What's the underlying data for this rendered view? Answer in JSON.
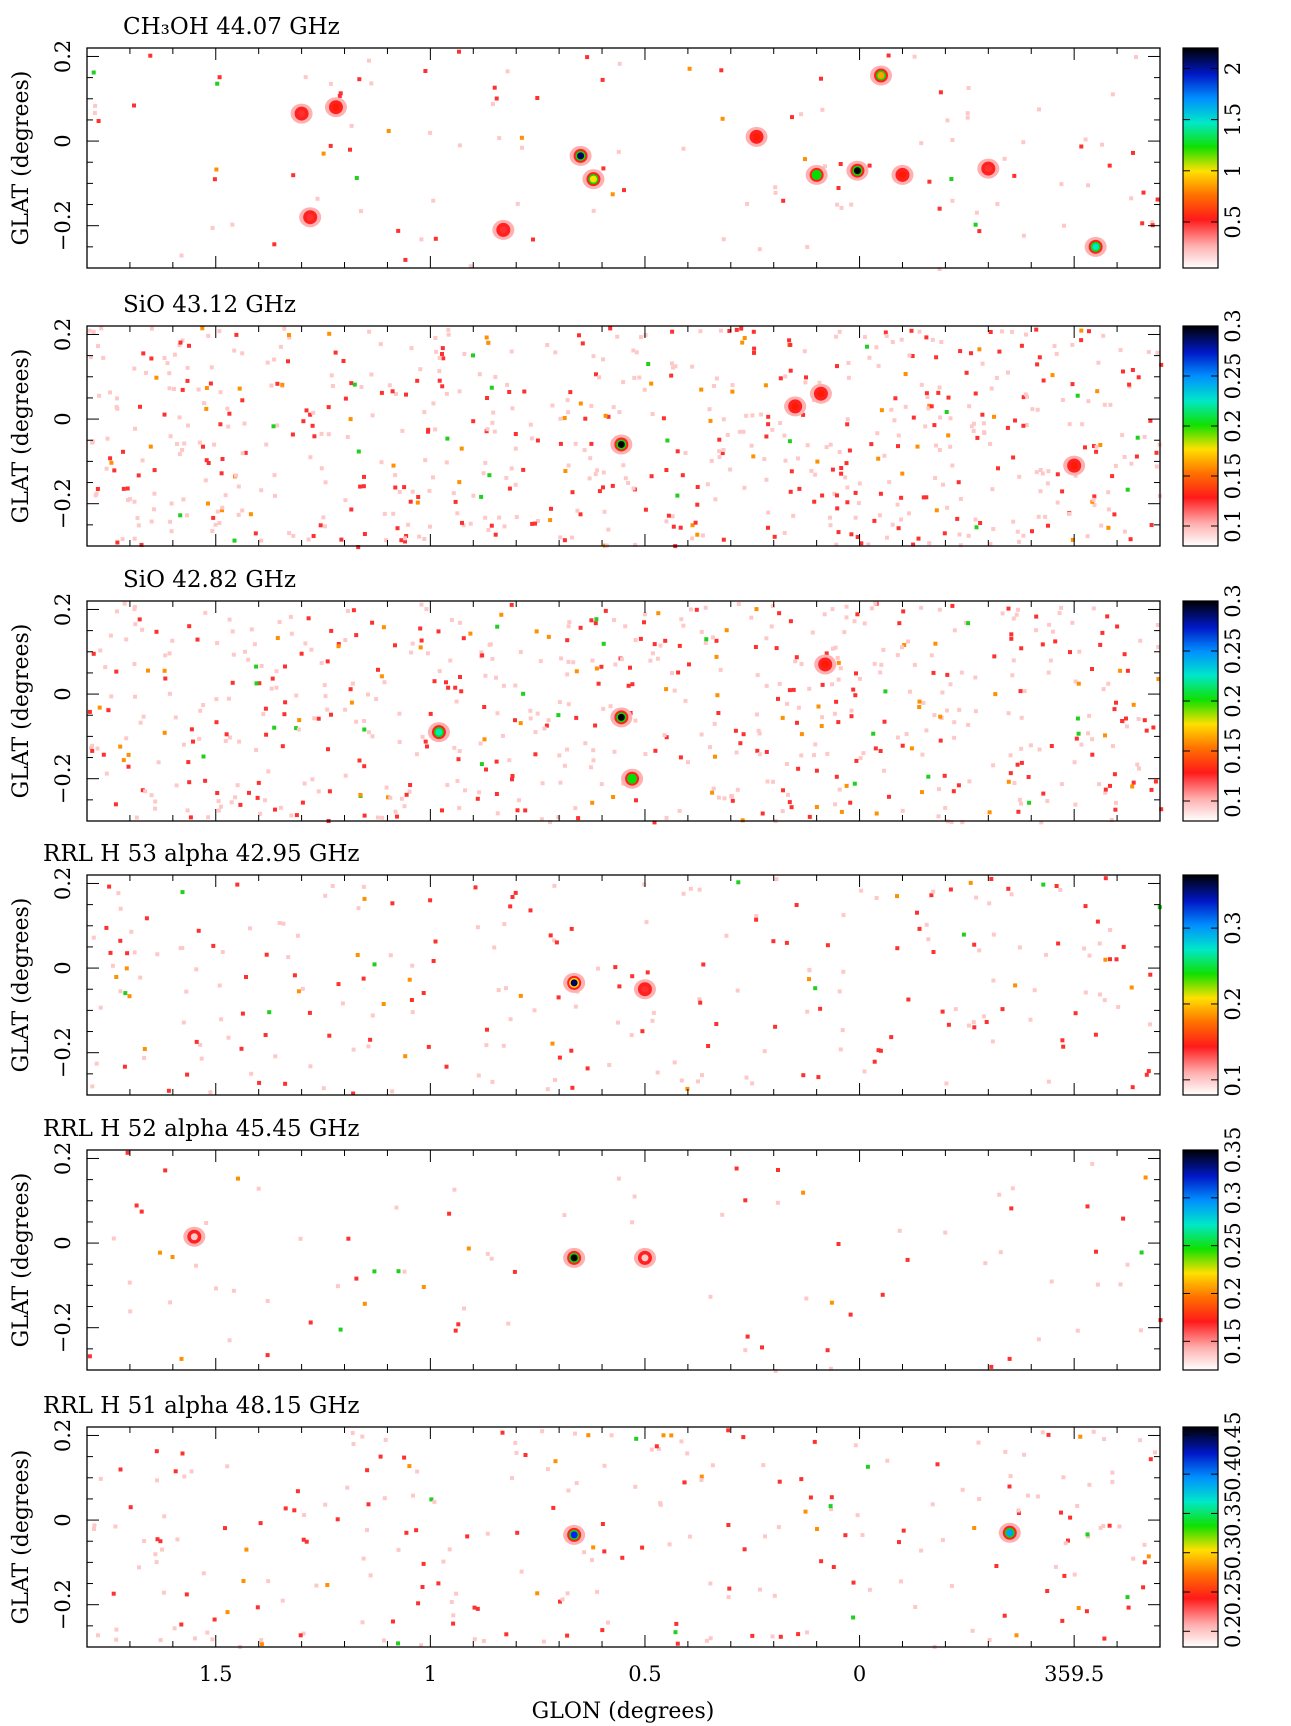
{
  "figure": {
    "xlabel": "GLON (degrees)",
    "ylabel": "GLAT (degrees)",
    "x_ticks": [
      "1.5",
      "1",
      "0.5",
      "0",
      "359.5"
    ],
    "y_ticks": [
      "0.2",
      "0",
      "−0.2"
    ]
  },
  "panels": [
    {
      "title": "CH₃OH 44.07 GHz",
      "cb_ticks": [
        "0.5",
        "1",
        "1.5",
        "2"
      ]
    },
    {
      "title": "SiO 43.12 GHz",
      "cb_ticks": [
        "0.1",
        "0.15",
        "0.2",
        "0.25",
        "0.3"
      ]
    },
    {
      "title": "SiO 42.82 GHz",
      "cb_ticks": [
        "0.1",
        "0.15",
        "0.2",
        "0.25",
        "0.3"
      ]
    },
    {
      "title": "RRL H 53 alpha 42.95 GHz",
      "cb_ticks": [
        "0.1",
        "0.2",
        "0.3"
      ]
    },
    {
      "title": "RRL H 52 alpha 45.45 GHz",
      "cb_ticks": [
        "0.15",
        "0.2",
        "0.25",
        "0.3",
        "0.35"
      ]
    },
    {
      "title": "RRL H 51 alpha 48.15 GHz",
      "cb_ticks": [
        "0.2",
        "0.25",
        "0.3",
        "0.35",
        "0.4",
        "0.45"
      ]
    }
  ],
  "chart_data": [
    {
      "type": "heatmap",
      "title": "CH₃OH 44.07 GHz",
      "xlabel": "",
      "ylabel": "GLAT (degrees)",
      "xlim": [
        1.8,
        -0.7
      ],
      "ylim": [
        -0.3,
        0.22
      ],
      "colorbar_range": [
        0.05,
        2.2
      ],
      "sources": [
        {
          "x": 0.65,
          "y": -0.035,
          "v": 2.0
        },
        {
          "x": 0.005,
          "y": -0.07,
          "v": 2.2
        },
        {
          "x": -0.55,
          "y": -0.25,
          "v": 1.5
        },
        {
          "x": 0.1,
          "y": -0.08,
          "v": 1.3
        },
        {
          "x": 0.62,
          "y": -0.09,
          "v": 1.0
        },
        {
          "x": -0.05,
          "y": 0.155,
          "v": 0.9
        },
        {
          "x": 1.22,
          "y": 0.08,
          "v": 0.6
        },
        {
          "x": 1.3,
          "y": 0.065,
          "v": 0.5
        },
        {
          "x": 0.24,
          "y": 0.01,
          "v": 0.6
        },
        {
          "x": -0.1,
          "y": -0.08,
          "v": 0.6
        },
        {
          "x": 1.28,
          "y": -0.18,
          "v": 0.5
        },
        {
          "x": -0.3,
          "y": -0.065,
          "v": 0.45
        },
        {
          "x": 0.83,
          "y": -0.21,
          "v": 0.45
        }
      ]
    },
    {
      "type": "heatmap",
      "title": "SiO 43.12 GHz",
      "xlabel": "",
      "ylabel": "GLAT (degrees)",
      "xlim": [
        1.8,
        -0.7
      ],
      "ylim": [
        -0.3,
        0.22
      ],
      "colorbar_range": [
        0.08,
        0.3
      ],
      "sources": [
        {
          "x": 0.555,
          "y": -0.06,
          "v": 0.3
        },
        {
          "x": 0.09,
          "y": 0.06,
          "v": 0.14
        },
        {
          "x": 0.15,
          "y": 0.03,
          "v": 0.14
        },
        {
          "x": -0.5,
          "y": -0.11,
          "v": 0.13
        }
      ]
    },
    {
      "type": "heatmap",
      "title": "SiO 42.82 GHz",
      "xlabel": "",
      "ylabel": "GLAT (degrees)",
      "xlim": [
        1.8,
        -0.7
      ],
      "ylim": [
        -0.3,
        0.22
      ],
      "colorbar_range": [
        0.08,
        0.3
      ],
      "sources": [
        {
          "x": 0.555,
          "y": -0.055,
          "v": 0.3
        },
        {
          "x": 0.98,
          "y": -0.09,
          "v": 0.22
        },
        {
          "x": 0.53,
          "y": -0.2,
          "v": 0.2
        },
        {
          "x": 0.08,
          "y": 0.07,
          "v": 0.13
        }
      ]
    },
    {
      "type": "heatmap",
      "title": "RRL H 53 alpha 42.95 GHz",
      "xlabel": "",
      "ylabel": "GLAT (degrees)",
      "xlim": [
        1.8,
        -0.7
      ],
      "ylim": [
        -0.3,
        0.22
      ],
      "colorbar_range": [
        0.08,
        0.37
      ],
      "sources": [
        {
          "x": 0.665,
          "y": -0.035,
          "v": 0.35
        },
        {
          "x": 0.5,
          "y": -0.05,
          "v": 0.12
        }
      ]
    },
    {
      "type": "heatmap",
      "title": "RRL H 52 alpha 45.45 GHz",
      "xlabel": "",
      "ylabel": "GLAT (degrees)",
      "xlim": [
        1.8,
        -0.7
      ],
      "ylim": [
        -0.3,
        0.22
      ],
      "colorbar_range": [
        0.12,
        0.35
      ],
      "sources": [
        {
          "x": 0.665,
          "y": -0.035,
          "v": 0.35
        },
        {
          "x": 1.55,
          "y": 0.015,
          "v": 0.15
        },
        {
          "x": 0.5,
          "y": -0.035,
          "v": 0.14
        }
      ]
    },
    {
      "type": "heatmap",
      "title": "RRL H 51 alpha 48.15 GHz",
      "xlabel": "GLON (degrees)",
      "ylabel": "GLAT (degrees)",
      "xlim": [
        1.8,
        -0.7
      ],
      "ylim": [
        -0.3,
        0.22
      ],
      "colorbar_range": [
        0.18,
        0.46
      ],
      "sources": [
        {
          "x": 0.665,
          "y": -0.035,
          "v": 0.42
        },
        {
          "x": -0.35,
          "y": -0.03,
          "v": 0.38
        }
      ]
    }
  ],
  "colors": {
    "cmap": [
      "#ffffff",
      "#ffc8c8",
      "#ff3030",
      "#ff1a00",
      "#ffa000",
      "#ffe000",
      "#00e000",
      "#00e8c0",
      "#00a0ff",
      "#0020ff",
      "#000060",
      "#000000"
    ]
  }
}
